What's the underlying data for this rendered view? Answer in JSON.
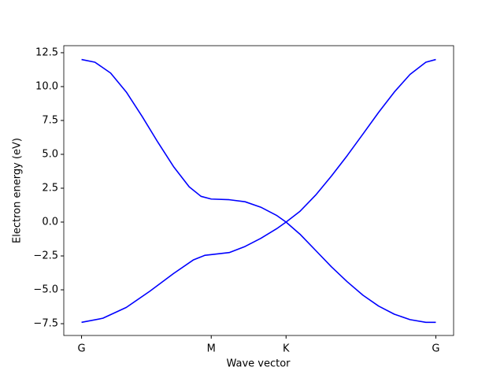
{
  "chart_data": {
    "type": "line",
    "x_label": "Wave vector",
    "y_label": "Electron energy (eV)",
    "xlim": [
      -0.137,
      2.869
    ],
    "ylim": [
      -8.37,
      13.02
    ],
    "xticks": [
      {
        "value": 0,
        "label": "G"
      },
      {
        "value": 1.0,
        "label": "M"
      },
      {
        "value": 1.577,
        "label": "K"
      },
      {
        "value": 2.732,
        "label": "G"
      }
    ],
    "yticks": [
      {
        "value": -7.5,
        "label": "−7.5"
      },
      {
        "value": -5.0,
        "label": "−5.0"
      },
      {
        "value": -2.5,
        "label": "−2.5"
      },
      {
        "value": 0,
        "label": "0.0"
      },
      {
        "value": 2.5,
        "label": "2.5"
      },
      {
        "value": 5.0,
        "label": "5.0"
      },
      {
        "value": 7.5,
        "label": "7.5"
      },
      {
        "value": 10.0,
        "label": "10.0"
      },
      {
        "value": 12.5,
        "label": "12.5"
      }
    ],
    "series": [
      {
        "color": "#0000ff",
        "x": [
          0,
          0.103,
          0.224,
          0.345,
          0.467,
          0.588,
          0.709,
          0.83,
          0.921,
          1.0,
          1.139,
          1.261,
          1.382,
          1.503,
          1.577,
          1.685,
          1.806,
          1.927,
          2.048,
          2.17,
          2.291,
          2.412,
          2.533,
          2.655,
          2.732
        ],
        "values": [
          12.0,
          11.8,
          11.0,
          9.6,
          7.8,
          5.9,
          4.1,
          2.6,
          1.9,
          1.7,
          1.65,
          1.5,
          1.1,
          0.5,
          0.0,
          -0.9,
          -2.1,
          -3.3,
          -4.4,
          -5.4,
          -6.2,
          -6.8,
          -7.2,
          -7.4,
          -7.4
        ]
      },
      {
        "color": "#0000ff",
        "x": [
          0,
          0.164,
          0.345,
          0.527,
          0.709,
          0.861,
          0.952,
          1.0,
          1.139,
          1.261,
          1.382,
          1.503,
          1.577,
          1.685,
          1.806,
          1.927,
          2.048,
          2.17,
          2.291,
          2.412,
          2.533,
          2.655,
          2.732
        ],
        "values": [
          -7.4,
          -7.1,
          -6.3,
          -5.1,
          -3.8,
          -2.8,
          -2.45,
          -2.4,
          -2.25,
          -1.8,
          -1.2,
          -0.5,
          0.0,
          0.8,
          2.0,
          3.4,
          4.9,
          6.5,
          8.1,
          9.6,
          10.9,
          11.8,
          12.0
        ]
      }
    ]
  }
}
